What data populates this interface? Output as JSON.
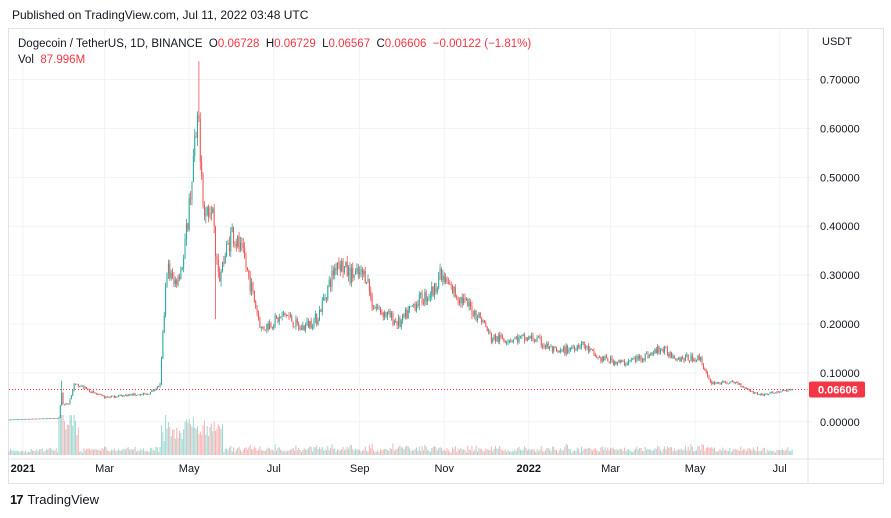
{
  "header": {
    "published": "Published on TradingView.com, Jul 11, 2022 03:48 UTC"
  },
  "legend": {
    "symbol": "Dogecoin / TetherUS, 1D, BINANCE",
    "o_label": "O",
    "o_value": "0.06728",
    "h_label": "H",
    "h_value": "0.06729",
    "l_label": "L",
    "l_value": "0.06567",
    "c_label": "C",
    "c_value": "0.06606",
    "change": "−0.00122 (−1.81%)",
    "vol_label": "Vol",
    "vol_value": "87.996M"
  },
  "currency": "USDT",
  "brand": {
    "logo": "17",
    "name": "TradingView"
  },
  "colors": {
    "up": "#26a69a",
    "down": "#ef5350",
    "last_price": "#f23645",
    "grid": "#f0f3fa"
  },
  "chart_data": {
    "type": "candlestick",
    "y_axis_ticks": [
      "0.70000",
      "0.60000",
      "0.50000",
      "0.40000",
      "0.30000",
      "0.20000",
      "0.10000",
      "0.00000"
    ],
    "y_tick_values": [
      0.7,
      0.6,
      0.5,
      0.4,
      0.3,
      0.2,
      0.1,
      0.0
    ],
    "ylim": [
      -0.068,
      0.74
    ],
    "x_axis_ticks": [
      {
        "label": "2021",
        "date": "2021-01-01"
      },
      {
        "label": "Mar",
        "date": "2021-03-01"
      },
      {
        "label": "May",
        "date": "2021-05-01"
      },
      {
        "label": "Jul",
        "date": "2021-07-01"
      },
      {
        "label": "Sep",
        "date": "2021-09-01"
      },
      {
        "label": "Nov",
        "date": "2021-11-01"
      },
      {
        "label": "2022",
        "date": "2022-01-01"
      },
      {
        "label": "Mar",
        "date": "2022-03-01"
      },
      {
        "label": "May",
        "date": "2022-05-01"
      },
      {
        "label": "Jul",
        "date": "2022-07-01"
      }
    ],
    "xlim": [
      "2020-12-22",
      "2022-07-20"
    ],
    "last_price": 0.06606,
    "last_price_label": "0.06606",
    "price_path": [
      [
        "2020-12-22",
        0.0045
      ],
      [
        "2021-01-27",
        0.0077
      ],
      [
        "2021-01-28",
        0.034
      ],
      [
        "2021-01-29",
        0.06
      ],
      [
        "2021-01-30",
        0.035
      ],
      [
        "2021-02-03",
        0.037
      ],
      [
        "2021-02-07",
        0.075
      ],
      [
        "2021-02-11",
        0.075
      ],
      [
        "2021-02-20",
        0.06
      ],
      [
        "2021-03-01",
        0.05
      ],
      [
        "2021-03-20",
        0.055
      ],
      [
        "2021-04-01",
        0.056
      ],
      [
        "2021-04-10",
        0.075
      ],
      [
        "2021-04-15",
        0.32
      ],
      [
        "2021-04-20",
        0.28
      ],
      [
        "2021-04-27",
        0.33
      ],
      [
        "2021-05-05",
        0.56
      ],
      [
        "2021-05-08",
        0.61
      ],
      [
        "2021-05-12",
        0.42
      ],
      [
        "2021-05-18",
        0.46
      ],
      [
        "2021-05-20",
        0.36
      ],
      [
        "2021-05-23",
        0.3
      ],
      [
        "2021-06-01",
        0.39
      ],
      [
        "2021-06-10",
        0.33
      ],
      [
        "2021-06-22",
        0.19
      ],
      [
        "2021-07-10",
        0.22
      ],
      [
        "2021-07-20",
        0.19
      ],
      [
        "2021-08-01",
        0.21
      ],
      [
        "2021-08-16",
        0.33
      ],
      [
        "2021-08-25",
        0.3
      ],
      [
        "2021-09-06",
        0.3
      ],
      [
        "2021-09-10",
        0.24
      ],
      [
        "2021-09-30",
        0.2
      ],
      [
        "2021-10-10",
        0.24
      ],
      [
        "2021-10-25",
        0.27
      ],
      [
        "2021-10-28",
        0.3
      ],
      [
        "2021-11-10",
        0.26
      ],
      [
        "2021-11-28",
        0.21
      ],
      [
        "2021-12-05",
        0.17
      ],
      [
        "2021-12-20",
        0.17
      ],
      [
        "2022-01-05",
        0.17
      ],
      [
        "2022-01-22",
        0.14
      ],
      [
        "2022-02-08",
        0.16
      ],
      [
        "2022-02-20",
        0.13
      ],
      [
        "2022-03-10",
        0.12
      ],
      [
        "2022-04-01",
        0.14
      ],
      [
        "2022-04-05",
        0.15
      ],
      [
        "2022-04-20",
        0.13
      ],
      [
        "2022-05-05",
        0.13
      ],
      [
        "2022-05-10",
        0.09
      ],
      [
        "2022-05-12",
        0.08
      ],
      [
        "2022-05-31",
        0.08
      ],
      [
        "2022-06-12",
        0.06
      ],
      [
        "2022-06-18",
        0.055
      ],
      [
        "2022-07-10",
        0.066
      ]
    ],
    "annotated_extremes": [
      {
        "date": "2021-01-29",
        "high": 0.084
      },
      {
        "date": "2021-05-08",
        "high": 0.7376
      },
      {
        "date": "2021-05-20",
        "low": 0.21
      }
    ],
    "volume_note": "volume histogram at bottom, scaled to its own pane"
  }
}
